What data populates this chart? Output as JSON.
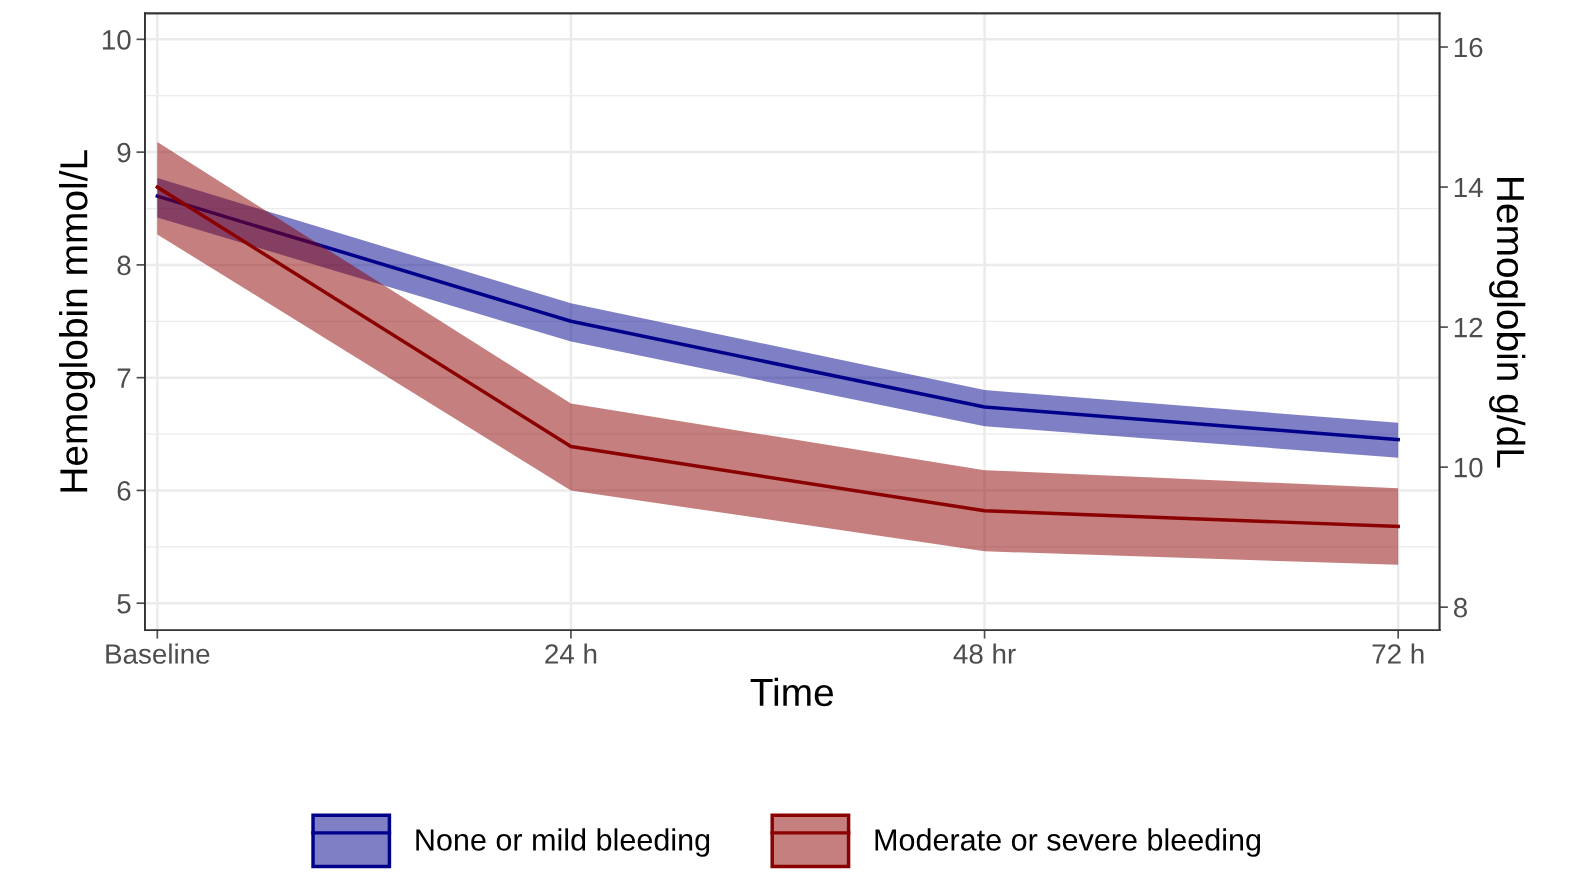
{
  "chart_data": {
    "type": "line",
    "xlabel": "Time",
    "ylabel": "Hemoglobin mmol/L",
    "y2label": "Hemoglobin g/dL",
    "categories": [
      "Baseline",
      "24 h",
      "48 hr",
      "72 h"
    ],
    "series": [
      {
        "name": "None or mild bleeding",
        "color": "#00008b",
        "values": [
          8.61,
          7.5,
          6.74,
          6.45
        ],
        "lower": [
          8.42,
          7.32,
          6.57,
          6.29
        ],
        "upper": [
          8.77,
          7.66,
          6.89,
          6.6
        ]
      },
      {
        "name": "Moderate or severe bleeding",
        "color": "#8b0000",
        "values": [
          8.69,
          6.39,
          5.82,
          5.68
        ],
        "lower": [
          8.27,
          6.0,
          5.46,
          5.34
        ],
        "upper": [
          9.09,
          6.77,
          6.18,
          6.02
        ]
      }
    ],
    "ylim": [
      4.76,
      10.23
    ],
    "yticks": [
      5,
      6,
      7,
      8,
      9,
      10
    ],
    "y2lim": [
      7.67,
      16.48
    ],
    "y2ticks": [
      8,
      10,
      12,
      14,
      16
    ],
    "grid": true,
    "legend": "bottom",
    "marker": "none",
    "line_style": "solid"
  }
}
